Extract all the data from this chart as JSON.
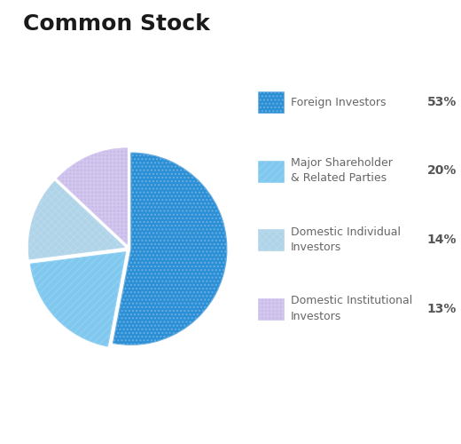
{
  "title": "Common Stock",
  "slices": [
    53,
    20,
    14,
    13
  ],
  "labels": [
    "Foreign Investors",
    "Major Shareholder\n& Related Parties",
    "Domestic Individual\nInvestors",
    "Domestic Institutional\nInvestors"
  ],
  "percentages": [
    "53%",
    "20%",
    "14%",
    "13%"
  ],
  "colors": [
    "#2b8fd6",
    "#80c8ee",
    "#afd4e8",
    "#c8bce8"
  ],
  "hatch_patterns": [
    "....",
    "////",
    "xxxx",
    "++++"
  ],
  "hatch_edge_colors": [
    "#6aaee0",
    "#90d0f4",
    "#b8d8ec",
    "#d4c8f0"
  ],
  "title_fontsize": 18,
  "legend_label_fontsize": 9,
  "legend_pct_fontsize": 10,
  "background_color": "#ffffff",
  "startangle": 90,
  "explode": [
    0.02,
    0.05,
    0.05,
    0.05
  ]
}
